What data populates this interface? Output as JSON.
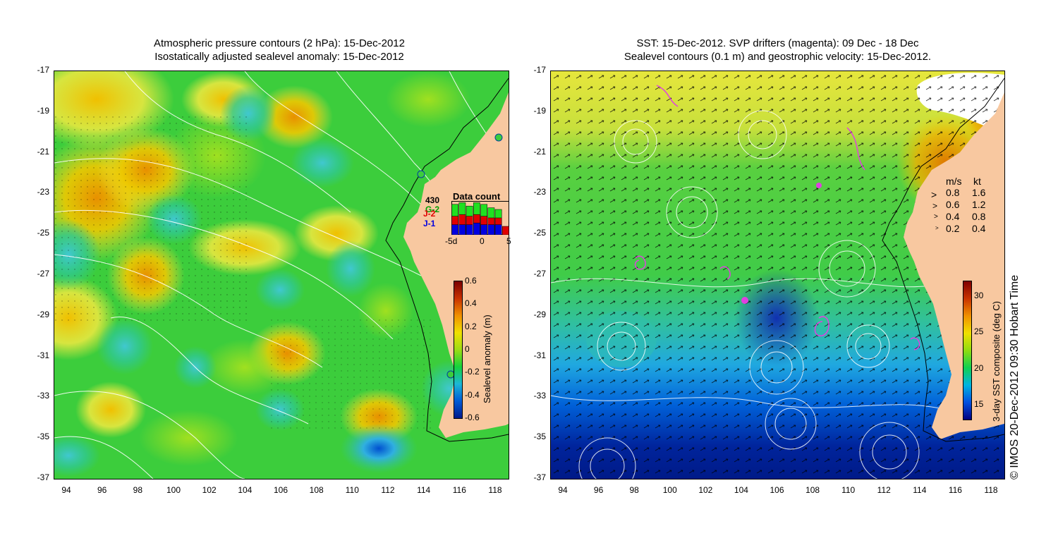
{
  "left_panel": {
    "title_line1": "Atmospheric pressure contours (2 hPa): 15-Dec-2012",
    "title_line2": "Isostatically adjusted sealevel anomaly: 15-Dec-2012",
    "colorbar": {
      "label": "Sealevel anomaly (m)",
      "ticks": [
        "0.6",
        "0.4",
        "0.2",
        "0",
        "-0.2",
        "-0.4",
        "-0.6"
      ],
      "colors": [
        "#001a8c",
        "#005bd6",
        "#1cb7d6",
        "#14d23c",
        "#9ddc14",
        "#f0e000",
        "#f09000",
        "#c83200",
        "#7a0000"
      ]
    },
    "data_count": {
      "title": "Data count",
      "count": "430",
      "labels": [
        "G-2",
        "J-2",
        "J-1"
      ],
      "label_colors": [
        "#00a000",
        "#e00000",
        "#0000e0"
      ],
      "xticks": [
        "-5d",
        "0",
        "5"
      ],
      "bars": [
        {
          "green": 0.9,
          "red": 0.55,
          "blue": 0.3
        },
        {
          "green": 0.95,
          "red": 0.6,
          "blue": 0.3
        },
        {
          "green": 0.85,
          "red": 0.55,
          "blue": 0.3
        },
        {
          "green": 0.95,
          "red": 0.6,
          "blue": 0.35
        },
        {
          "green": 0.9,
          "red": 0.55,
          "blue": 0.3
        },
        {
          "green": 0.8,
          "red": 0.5,
          "blue": 0.3
        },
        {
          "green": 0.75,
          "red": 0.5,
          "blue": 0.3
        },
        {
          "green": 0.0,
          "red": 0.25,
          "blue": 0.0
        }
      ]
    }
  },
  "right_panel": {
    "title_line1": "SST: 15-Dec-2012. SVP drifters (magenta): 09 Dec - 18 Dec",
    "title_line2": "Sealevel contours (0.1 m) and geostrophic velocity: 15-Dec-2012.",
    "colorbar": {
      "label": "3-day SST composite (deg C)",
      "ticks": [
        "30",
        "25",
        "20",
        "15"
      ],
      "colors": [
        "#000080",
        "#0050e0",
        "#00b4e0",
        "#10d050",
        "#90dc10",
        "#f0e000",
        "#f09000",
        "#c83200",
        "#800000"
      ]
    },
    "velocity_legend": {
      "header_ms": "m/s",
      "header_kt": "kt",
      "rows": [
        {
          "ms": "0.8",
          "kt": "1.6"
        },
        {
          "ms": "0.6",
          "kt": "1.2"
        },
        {
          "ms": "0.4",
          "kt": "0.8"
        },
        {
          "ms": "0.2",
          "kt": "0.4"
        }
      ]
    }
  },
  "axes": {
    "y_ticks": [
      "-17",
      "-19",
      "-21",
      "-23",
      "-25",
      "-27",
      "-29",
      "-31",
      "-33",
      "-35",
      "-37"
    ],
    "x_ticks": [
      "94",
      "96",
      "98",
      "100",
      "102",
      "104",
      "106",
      "108",
      "110",
      "112",
      "114",
      "116",
      "118"
    ]
  },
  "copyright": "© IMOS 20-Dec-2012 09:30 Hobart Time",
  "colors": {
    "land": "#f8c8a0",
    "ocean_green": "#3cd23c",
    "ocean_yellow": "#e8e83c"
  }
}
